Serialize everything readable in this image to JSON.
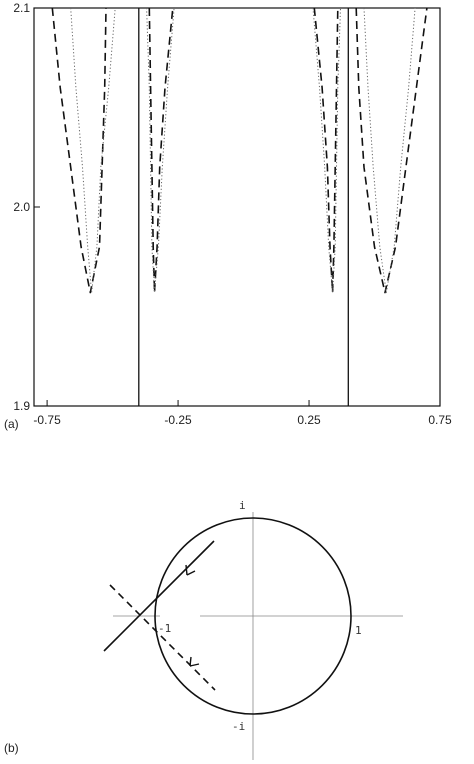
{
  "panel_a": {
    "label": "(a)",
    "x_ticks": [
      -0.75,
      -0.25,
      0.25,
      0.75
    ],
    "x_tick_labels": [
      "-0.75",
      "-0.25",
      "0.25",
      "0.75"
    ],
    "y_ticks": [
      1.9,
      2.0,
      2.1
    ],
    "y_tick_labels": [
      "1.9",
      "2.0",
      "2.1"
    ],
    "xlim": [
      -0.8,
      0.75
    ],
    "ylim": [
      1.9,
      2.1
    ],
    "vertical_lines_x": [
      -0.4,
      0.4
    ],
    "valley_bottom_y": 1.957
  },
  "panel_b": {
    "label": "(b)",
    "top_label": "i",
    "bottom_label": "-i",
    "left_label": "-1",
    "right_label": "1"
  },
  "chart_data": {
    "type": "line",
    "title": "",
    "xlabel": "",
    "ylabel": "",
    "xlim": [
      -0.8,
      0.75
    ],
    "ylim": [
      1.9,
      2.1
    ],
    "grid": false,
    "series": [
      {
        "style": "solid",
        "x": [
          -0.4,
          -0.4
        ],
        "y": [
          1.9,
          2.1
        ]
      },
      {
        "style": "solid",
        "x": [
          0.4,
          0.4
        ],
        "y": [
          1.9,
          2.1
        ]
      },
      {
        "style": "dashed",
        "x": [
          -0.73,
          -0.7,
          -0.66,
          -0.62,
          -0.585,
          -0.55,
          -0.54,
          -0.53,
          -0.525
        ],
        "y": [
          2.1,
          2.06,
          2.02,
          1.98,
          1.957,
          1.98,
          2.02,
          2.06,
          2.1
        ]
      },
      {
        "style": "dotted",
        "x": [
          -0.66,
          -0.64,
          -0.615,
          -0.595,
          -0.58,
          -0.56,
          -0.545,
          -0.515,
          -0.49
        ],
        "y": [
          2.1,
          2.06,
          2.02,
          1.98,
          1.957,
          1.98,
          2.02,
          2.06,
          2.1
        ]
      },
      {
        "style": "dashed",
        "x": [
          -0.36,
          -0.355,
          -0.35,
          -0.345,
          -0.34,
          -0.33,
          -0.32,
          -0.3,
          -0.27
        ],
        "y": [
          2.1,
          2.06,
          2.02,
          1.98,
          1.957,
          1.98,
          2.02,
          2.06,
          2.1
        ]
      },
      {
        "style": "dotted",
        "x": [
          -0.37,
          -0.36,
          -0.355,
          -0.35,
          -0.34,
          -0.325,
          -0.31,
          -0.29,
          -0.265
        ],
        "y": [
          2.1,
          2.06,
          2.02,
          1.98,
          1.957,
          1.98,
          2.02,
          2.06,
          2.1
        ]
      },
      {
        "style": "dashed",
        "x": [
          0.27,
          0.3,
          0.32,
          0.33,
          0.34,
          0.345,
          0.35,
          0.355,
          0.36
        ],
        "y": [
          2.1,
          2.06,
          2.02,
          1.98,
          1.957,
          1.98,
          2.02,
          2.06,
          2.1
        ]
      },
      {
        "style": "dotted",
        "x": [
          0.265,
          0.29,
          0.31,
          0.325,
          0.34,
          0.35,
          0.355,
          0.36,
          0.37
        ],
        "y": [
          2.1,
          2.06,
          2.02,
          1.98,
          1.957,
          1.98,
          2.02,
          2.06,
          2.1
        ]
      },
      {
        "style": "dashed",
        "x": [
          0.43,
          0.44,
          0.46,
          0.5,
          0.54,
          0.58,
          0.62,
          0.66,
          0.7
        ],
        "y": [
          2.1,
          2.06,
          2.02,
          1.98,
          1.957,
          1.98,
          2.02,
          2.06,
          2.1
        ]
      },
      {
        "style": "dotted",
        "x": [
          0.46,
          0.475,
          0.495,
          0.52,
          0.545,
          0.575,
          0.6,
          0.63,
          0.655
        ],
        "y": [
          2.1,
          2.06,
          2.02,
          1.98,
          1.957,
          1.98,
          2.02,
          2.06,
          2.1
        ]
      }
    ]
  }
}
